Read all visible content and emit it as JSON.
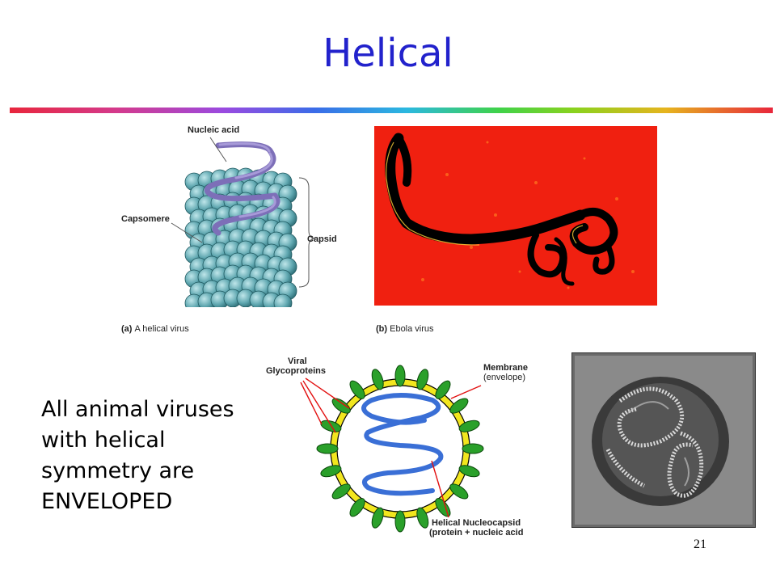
{
  "slide": {
    "title": "Helical",
    "page_number": "21"
  },
  "figure_a": {
    "nucleic_acid_label": "Nucleic acid",
    "capsomere_label": "Capsomere",
    "capsid_label": "Capsid",
    "caption_letter": "(a)",
    "caption_text": "A helical virus"
  },
  "figure_b": {
    "caption_letter": "(b)",
    "caption_text": "Ebola virus"
  },
  "enveloped_diagram": {
    "glycoproteins_label_line1": "Viral",
    "glycoproteins_label_line2": "Glycoproteins",
    "membrane_label_line1": "Membrane",
    "membrane_label_line2": "(envelope)",
    "nucleocapsid_label_line1": "Helical Nucleocapsid",
    "nucleocapsid_label_line2": "(protein + nucleic acid"
  },
  "body_text": {
    "line1": "All animal viruses",
    "line2": "with helical",
    "line3": "symmetry are",
    "line4": "ENVELOPED"
  }
}
